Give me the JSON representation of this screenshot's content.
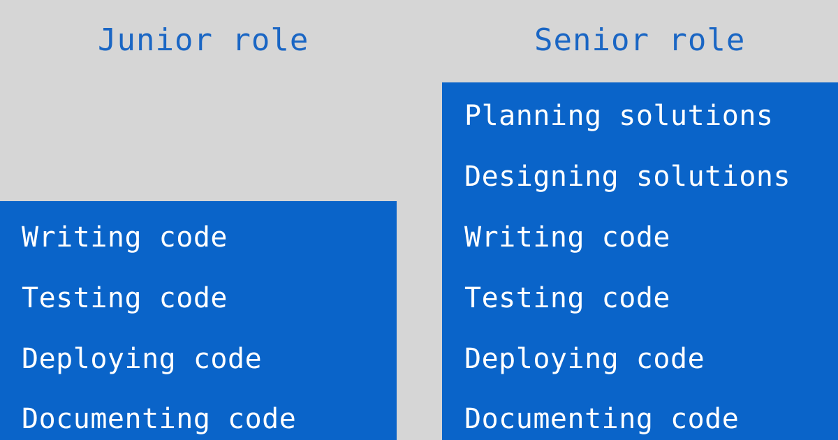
{
  "junior": {
    "title": "Junior role",
    "tasks": [
      "Writing code",
      "Testing code",
      "Deploying code",
      "Documenting code"
    ]
  },
  "senior": {
    "title": "Senior role",
    "tasks": [
      "Planning solutions",
      "Designing solutions",
      "Writing code",
      "Testing code",
      "Deploying code",
      "Documenting code"
    ]
  },
  "colors": {
    "background": "#d6d6d6",
    "heading": "#1a66c4",
    "panel": "#0a64c9",
    "panel_text": "#ffffff"
  }
}
